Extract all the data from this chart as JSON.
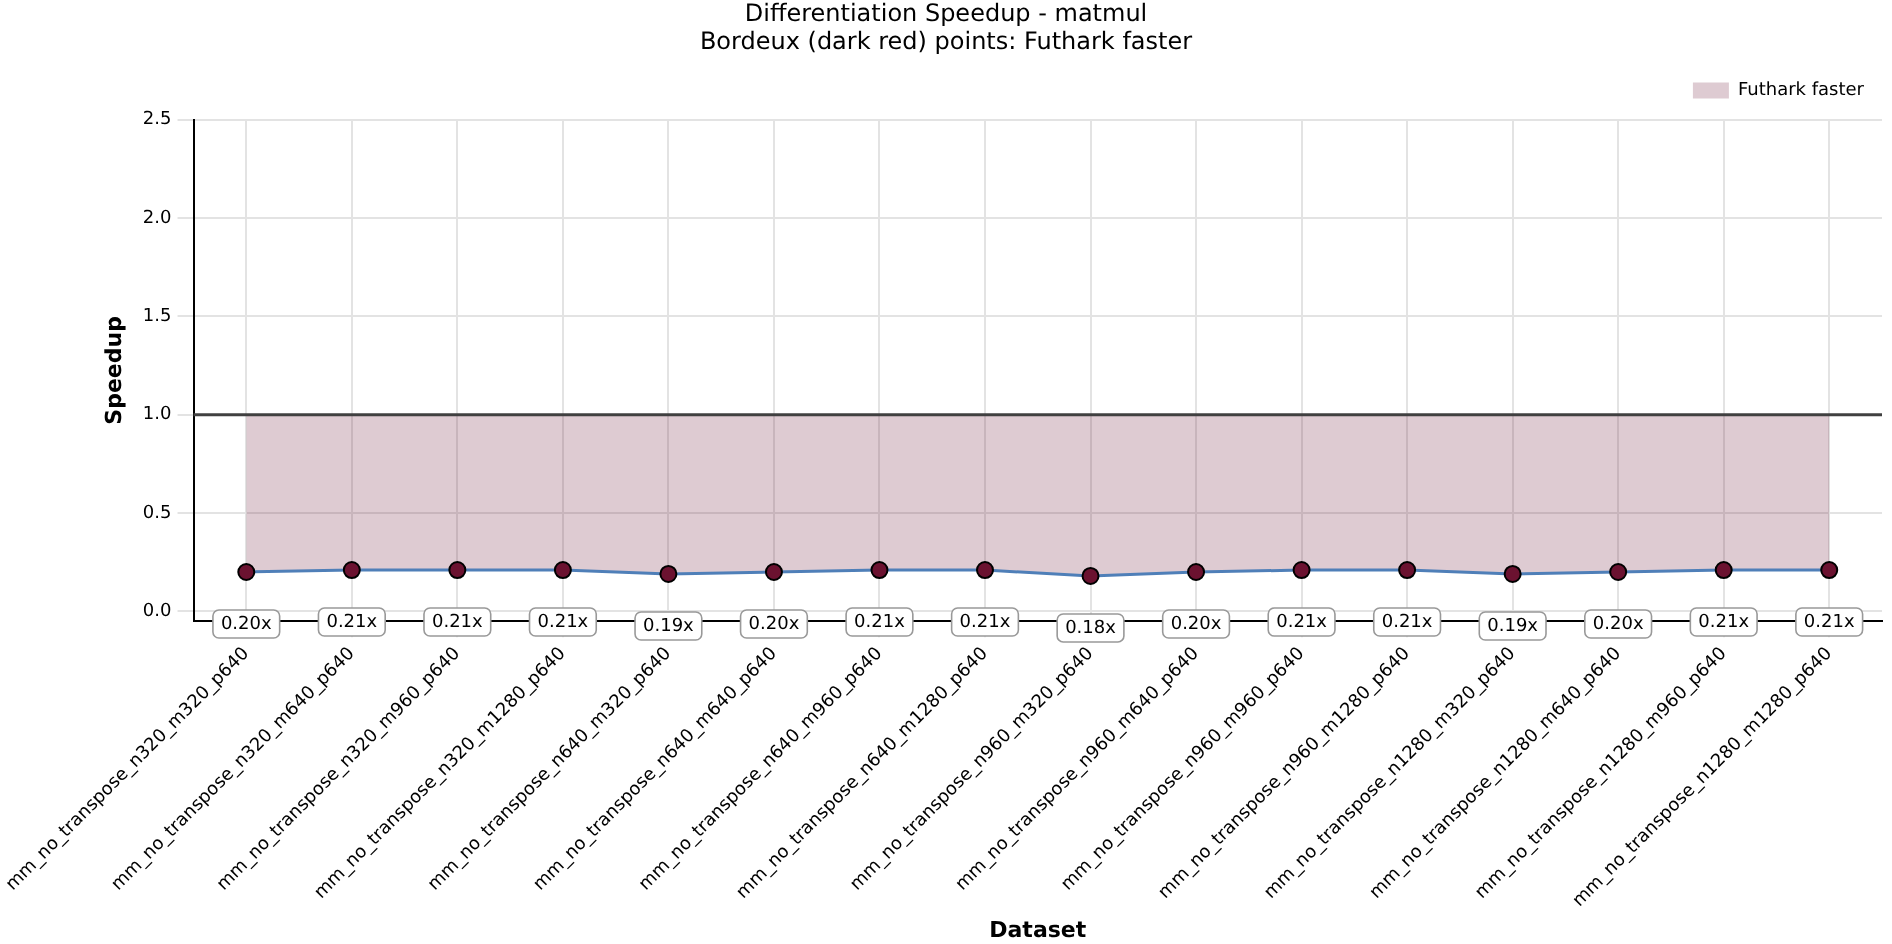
{
  "chart_data": {
    "type": "line",
    "title": "Differentiation Speedup - matmul",
    "subtitle": "Bordeux (dark red) points: Futhark faster",
    "xlabel": "Dataset",
    "ylabel": "Speedup",
    "categories": [
      "mm_no_transpose_n320_m320_p640",
      "mm_no_transpose_n320_m640_p640",
      "mm_no_transpose_n320_m960_p640",
      "mm_no_transpose_n320_m1280_p640",
      "mm_no_transpose_n640_m320_p640",
      "mm_no_transpose_n640_m640_p640",
      "mm_no_transpose_n640_m960_p640",
      "mm_no_transpose_n640_m1280_p640",
      "mm_no_transpose_n960_m320_p640",
      "mm_no_transpose_n960_m640_p640",
      "mm_no_transpose_n960_m960_p640",
      "mm_no_transpose_n960_m1280_p640",
      "mm_no_transpose_n1280_m320_p640",
      "mm_no_transpose_n1280_m640_p640",
      "mm_no_transpose_n1280_m960_p640",
      "mm_no_transpose_n1280_m1280_p640"
    ],
    "series": [
      {
        "name": "Futhark faster",
        "color": "#4f7fb8",
        "lower": [
          0.2,
          0.21,
          0.21,
          0.21,
          0.19,
          0.2,
          0.21,
          0.21,
          0.18,
          0.2,
          0.21,
          0.21,
          0.19,
          0.2,
          0.21,
          0.21
        ],
        "upper": [
          1,
          1,
          1,
          1,
          1,
          1,
          1,
          1,
          1,
          1,
          1,
          1,
          1,
          1,
          1,
          1
        ],
        "colors": [
          "#6b1230",
          "#6b1230",
          "#6b1230",
          "#6b1230",
          "#6b1230",
          "#6b1230",
          "#6b1230",
          "#6b1230",
          "#6b1230",
          "#6b1230",
          "#6b1230",
          "#6b1230",
          "#6b1230",
          "#6b1230",
          "#6b1230",
          "#6b1230"
        ],
        "values": [
          0.2,
          0.21,
          0.21,
          0.21,
          0.19,
          0.2,
          0.21,
          0.21,
          0.18,
          0.2,
          0.21,
          0.21,
          0.19,
          0.2,
          0.21,
          0.21
        ],
        "value_labels": [
          "0.20x",
          "0.21x",
          "0.21x",
          "0.21x",
          "0.19x",
          "0.20x",
          "0.21x",
          "0.21x",
          "0.18x",
          "0.20x",
          "0.21x",
          "0.21x",
          "0.19x",
          "0.20x",
          "0.21x",
          "0.21x"
        ]
      }
    ],
    "ref_lines": [
      {
        "axis": "y",
        "value": 1.0,
        "color": "#404040"
      }
    ],
    "ylim": [
      -0.05,
      2.5
    ],
    "yticks": [
      {
        "value": 0,
        "label": "0.0"
      },
      {
        "value": 0.5,
        "label": "0.5"
      },
      {
        "value": 1,
        "label": "1.0"
      },
      {
        "value": 1.5,
        "label": "1.5"
      },
      {
        "value": 2,
        "label": "2.0"
      },
      {
        "value": 2.5,
        "label": "2.5"
      }
    ],
    "grid": true,
    "legend": "top right",
    "marker": "circle",
    "line_style": "solid"
  }
}
